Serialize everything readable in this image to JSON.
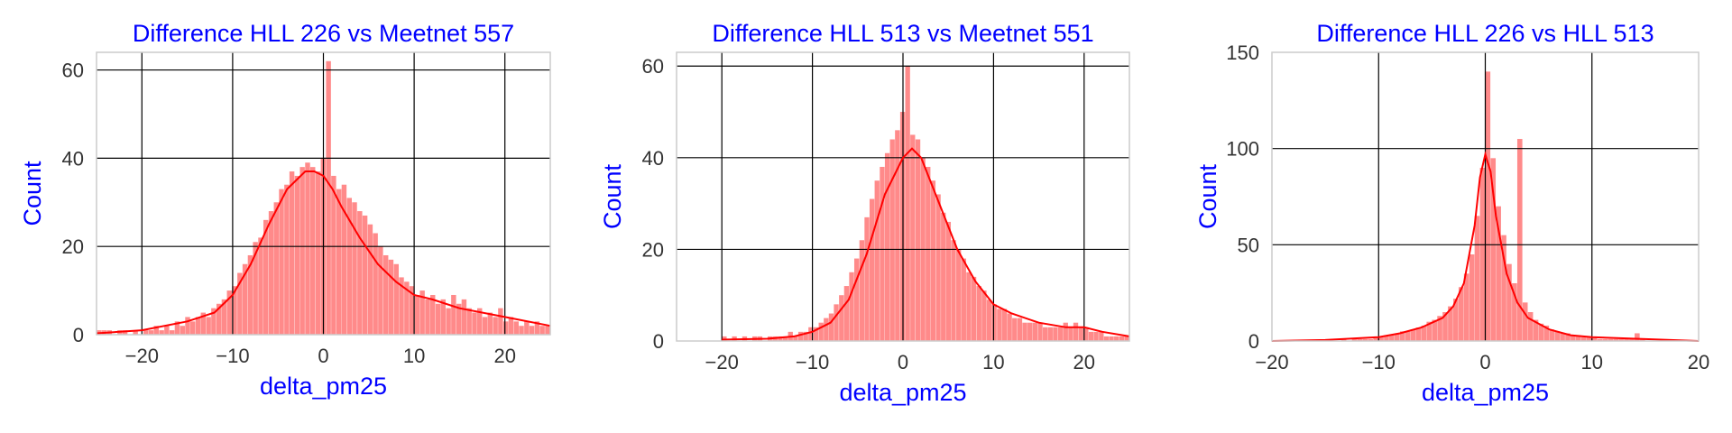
{
  "colors": {
    "title": "#0000ff",
    "axis_label": "#0000ff",
    "bar": "#ff8a8a",
    "kde": "#ff0000",
    "grid": "#000000",
    "frame": "#cccccc",
    "tick": "#333333"
  },
  "chart_data": [
    {
      "type": "bar",
      "title": "Difference HLL 226 vs Meetnet 557",
      "xlabel": "delta_pm25",
      "ylabel": "Count",
      "xlim": [
        -25,
        25
      ],
      "ylim": [
        0,
        64
      ],
      "xticks": [
        "−20",
        "−10",
        "0",
        "10",
        "20"
      ],
      "xtick_values": [
        -20,
        -10,
        0,
        10,
        20
      ],
      "yticks": [
        "0",
        "20",
        "40",
        "60"
      ],
      "ytick_values": [
        0,
        20,
        40,
        60
      ],
      "grid": true,
      "kde": {
        "x": [
          -25,
          -20,
          -15,
          -12,
          -10,
          -8,
          -6,
          -4,
          -2,
          -1,
          0,
          1,
          2,
          4,
          6,
          8,
          10,
          12,
          15,
          20,
          25
        ],
        "y": [
          0.3,
          1,
          3,
          5,
          9,
          16,
          25,
          33,
          37,
          37,
          36,
          33,
          29,
          22,
          16,
          12,
          9,
          8,
          6,
          4,
          2
        ]
      },
      "bins": {
        "x": [
          -25.0,
          -24.43,
          -23.85,
          -23.28,
          -22.7,
          -22.13,
          -21.55,
          -20.98,
          -20.4,
          -19.83,
          -19.25,
          -18.68,
          -18.1,
          -17.53,
          -16.95,
          -16.38,
          -15.8,
          -15.23,
          -14.66,
          -14.08,
          -13.51,
          -12.93,
          -12.36,
          -11.78,
          -11.21,
          -10.63,
          -10.06,
          -9.48,
          -8.91,
          -8.33,
          -7.76,
          -7.18,
          -6.61,
          -6.03,
          -5.46,
          -4.89,
          -4.31,
          -3.74,
          -3.16,
          -2.59,
          -2.01,
          -1.44,
          -0.86,
          -0.29,
          0.29,
          0.86,
          1.44,
          2.01,
          2.59,
          3.16,
          3.74,
          4.31,
          4.89,
          5.46,
          6.03,
          6.61,
          7.18,
          7.76,
          8.33,
          8.91,
          9.48,
          10.06,
          10.63,
          11.21,
          11.78,
          12.36,
          12.93,
          13.51,
          14.08,
          14.66,
          15.23,
          15.8,
          16.38,
          16.95,
          17.53,
          18.1,
          18.68,
          19.25,
          19.83,
          20.4,
          20.98,
          21.55,
          22.13,
          22.7,
          23.28,
          23.85,
          24.43
        ],
        "counts": [
          1,
          1,
          1,
          0,
          1,
          1,
          0,
          1,
          0,
          1,
          1,
          2,
          1,
          2,
          1,
          3,
          2,
          4,
          3,
          4,
          5,
          4,
          6,
          7,
          8,
          10,
          11,
          14,
          16,
          18,
          21,
          22,
          26,
          28,
          30,
          33,
          34,
          37,
          36,
          38,
          39,
          38,
          37,
          40,
          62,
          36,
          33,
          34,
          31,
          30,
          28,
          27,
          25,
          23,
          20,
          18,
          17,
          16,
          13,
          12,
          11,
          9,
          10,
          8,
          9,
          7,
          8,
          6,
          9,
          7,
          8,
          6,
          5,
          6,
          4,
          5,
          4,
          6,
          3,
          4,
          3,
          2,
          3,
          2,
          3,
          2,
          2
        ]
      }
    },
    {
      "type": "bar",
      "title": "Difference HLL 513 vs Meetnet 551",
      "xlabel": "delta_pm25",
      "ylabel": "Count",
      "xlim": [
        -25,
        25
      ],
      "ylim": [
        0,
        63
      ],
      "xticks": [
        "−20",
        "−10",
        "0",
        "10",
        "20"
      ],
      "xtick_values": [
        -20,
        -10,
        0,
        10,
        20
      ],
      "yticks": [
        "0",
        "20",
        "40",
        "60"
      ],
      "ytick_values": [
        0,
        20,
        40,
        60
      ],
      "grid": true,
      "kde": {
        "x": [
          -20,
          -15,
          -12,
          -10,
          -8,
          -6,
          -4,
          -2,
          0,
          1,
          2,
          4,
          6,
          8,
          10,
          12,
          15,
          18,
          20,
          22,
          25
        ],
        "y": [
          0.3,
          0.5,
          1,
          2,
          4,
          9,
          19,
          32,
          40,
          42,
          40,
          30,
          20,
          13,
          8,
          6,
          4,
          3,
          3,
          2,
          1
        ]
      },
      "bins": {
        "x": [
          -20.0,
          -19.44,
          -18.88,
          -18.31,
          -17.75,
          -17.19,
          -16.63,
          -16.06,
          -15.5,
          -14.94,
          -14.38,
          -13.81,
          -13.25,
          -12.69,
          -12.13,
          -11.56,
          -11.0,
          -10.44,
          -9.88,
          -9.31,
          -8.75,
          -8.19,
          -7.63,
          -7.06,
          -6.5,
          -5.94,
          -5.38,
          -4.81,
          -4.25,
          -3.69,
          -3.13,
          -2.56,
          -2.0,
          -1.44,
          -0.88,
          -0.31,
          0.25,
          0.81,
          1.38,
          1.94,
          2.5,
          3.06,
          3.63,
          4.19,
          4.75,
          5.31,
          5.88,
          6.44,
          7.0,
          7.56,
          8.13,
          8.69,
          9.25,
          9.81,
          10.38,
          10.94,
          11.5,
          12.06,
          12.63,
          13.19,
          13.75,
          14.31,
          14.88,
          15.44,
          16.0,
          16.56,
          17.13,
          17.69,
          18.25,
          18.81,
          19.38,
          19.94,
          20.5,
          21.06,
          21.63,
          22.19,
          22.75,
          23.31,
          23.88,
          24.44
        ],
        "counts": [
          1,
          0,
          1,
          0,
          1,
          0,
          1,
          1,
          0,
          1,
          1,
          1,
          1,
          2,
          1,
          2,
          2,
          3,
          3,
          4,
          5,
          6,
          8,
          10,
          12,
          15,
          18,
          22,
          27,
          31,
          35,
          38,
          41,
          44,
          46,
          50,
          60,
          45,
          44,
          40,
          38,
          35,
          32,
          28,
          26,
          22,
          20,
          18,
          15,
          14,
          12,
          11,
          9,
          8,
          7,
          7,
          6,
          5,
          5,
          4,
          4,
          4,
          4,
          3,
          3,
          3,
          3,
          4,
          3,
          4,
          3,
          3,
          2,
          2,
          2,
          1,
          1,
          1,
          1,
          1
        ]
      }
    },
    {
      "type": "bar",
      "title": "Difference HLL 226 vs HLL 513",
      "xlabel": "delta_pm25",
      "ylabel": "Count",
      "xlim": [
        -20,
        20
      ],
      "ylim": [
        0,
        150
      ],
      "xticks": [
        "−20",
        "−10",
        "0",
        "10",
        "20"
      ],
      "xtick_values": [
        -20,
        -10,
        0,
        10,
        20
      ],
      "yticks": [
        "0",
        "50",
        "100",
        "150"
      ],
      "ytick_values": [
        0,
        50,
        100,
        150
      ],
      "grid": true,
      "kde": {
        "x": [
          -20,
          -15,
          -10,
          -8,
          -6,
          -4,
          -3,
          -2,
          -1,
          -0.5,
          0,
          0.5,
          1,
          2,
          3,
          4,
          6,
          8,
          10,
          15,
          20
        ],
        "y": [
          0,
          0.5,
          2,
          4,
          7,
          12,
          18,
          30,
          60,
          85,
          97,
          88,
          65,
          35,
          20,
          12,
          6,
          3,
          2,
          1,
          0
        ]
      },
      "bins": {
        "x": [
          -14.0,
          -13.5,
          -13.0,
          -12.5,
          -12.0,
          -11.5,
          -11.0,
          -10.5,
          -10.0,
          -9.5,
          -9.0,
          -8.5,
          -8.0,
          -7.5,
          -7.0,
          -6.5,
          -6.0,
          -5.5,
          -5.0,
          -4.5,
          -4.0,
          -3.5,
          -3.0,
          -2.5,
          -2.0,
          -1.5,
          -1.0,
          -0.5,
          0.0,
          0.5,
          1.0,
          1.5,
          2.0,
          2.5,
          3.0,
          3.5,
          4.0,
          4.5,
          5.0,
          5.5,
          6.0,
          6.5,
          7.0,
          7.5,
          8.0,
          8.5,
          9.0,
          9.5,
          10.0,
          10.5,
          11.0,
          11.5,
          12.0,
          12.5,
          13.0,
          13.5,
          14.0,
          14.5
        ],
        "counts": [
          0,
          1,
          0,
          1,
          1,
          1,
          1,
          2,
          2,
          3,
          3,
          4,
          5,
          5,
          6,
          7,
          8,
          10,
          11,
          13,
          15,
          18,
          22,
          28,
          35,
          45,
          65,
          90,
          140,
          95,
          70,
          55,
          40,
          30,
          105,
          20,
          15,
          11,
          9,
          8,
          6,
          5,
          4,
          4,
          3,
          3,
          2,
          2,
          2,
          1,
          1,
          1,
          1,
          1,
          1,
          1,
          4,
          1
        ]
      }
    }
  ]
}
